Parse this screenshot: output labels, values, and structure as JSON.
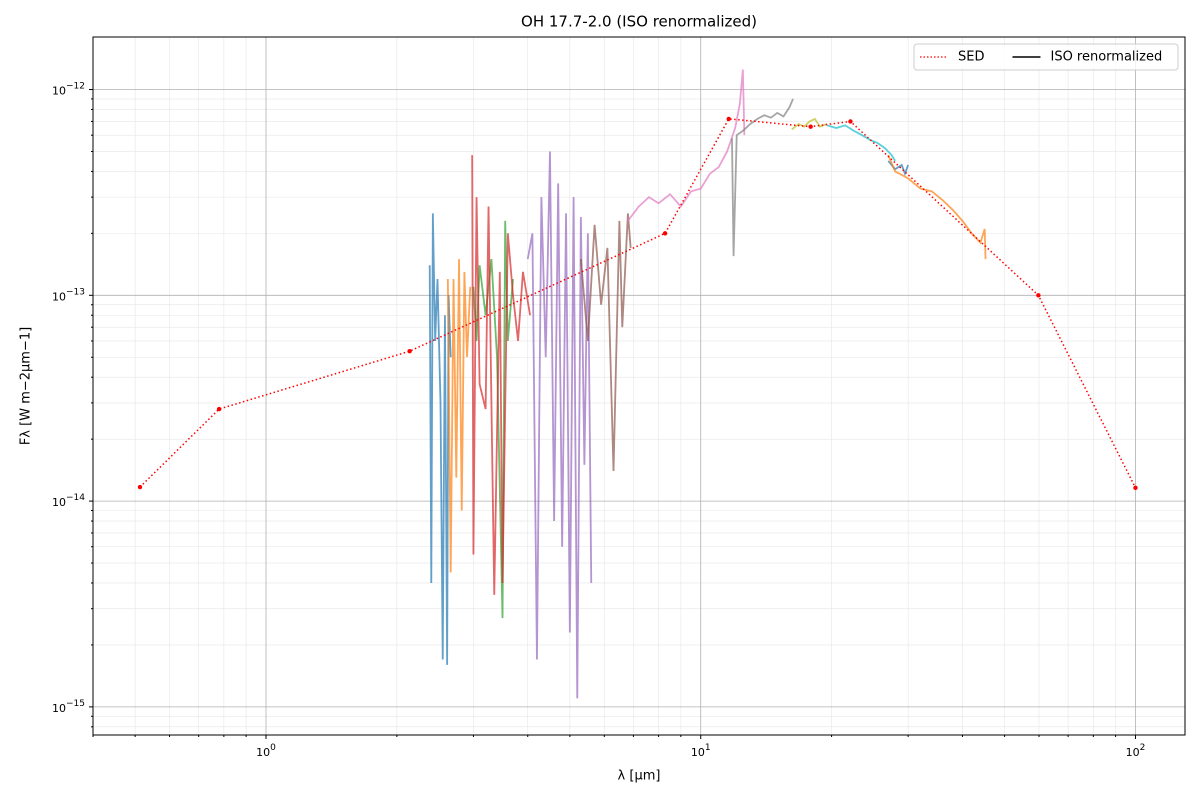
{
  "chart_data": {
    "type": "line",
    "title": "OH 17.7-2.0 (ISO renormalized)",
    "x_label": "λ [μm]",
    "y_label": "Fλ [W m−2μm−1]",
    "xscale": "log",
    "yscale": "log",
    "grid": true,
    "legend": "upper right",
    "xlim": [
      0.4,
      130
    ],
    "ylim": [
      7.3e-16,
      1.8e-12
    ],
    "xticks": [
      {
        "value": 1,
        "label": "100"
      },
      {
        "value": 10,
        "label": "101"
      },
      {
        "value": 100,
        "label": "102"
      }
    ],
    "yticks": [
      {
        "value": 1e-15,
        "label": "10−15"
      },
      {
        "value": 1e-14,
        "label": "10−14"
      },
      {
        "value": 1e-13,
        "label": "10−13"
      },
      {
        "value": 1e-12,
        "label": "10−12"
      }
    ],
    "xminorticks": [
      0.4,
      0.5,
      0.6,
      0.7,
      0.8,
      0.9,
      2,
      3,
      4,
      5,
      6,
      7,
      8,
      9,
      20,
      30,
      40,
      50,
      60,
      70,
      80,
      90
    ],
    "yminorticks": [
      8e-16,
      9e-16,
      2e-15,
      3e-15,
      4e-15,
      5e-15,
      6e-15,
      7e-15,
      8e-15,
      9e-15,
      2e-14,
      3e-14,
      4e-14,
      5e-14,
      6e-14,
      7e-14,
      8e-14,
      9e-14,
      2e-13,
      3e-13,
      4e-13,
      5e-13,
      6e-13,
      7e-13,
      8e-13,
      9e-13
    ],
    "series": [
      {
        "name": "SED",
        "color": "#ff0000",
        "style": "dotted",
        "x": [
          0.513,
          0.78,
          2.14,
          8.28,
          11.6,
          17.9,
          22.1,
          59.8,
          100
        ],
        "values": [
          1.17e-14,
          2.8e-14,
          5.35e-14,
          2e-13,
          7.2e-13,
          6.6e-13,
          7e-13,
          1e-13,
          1.16e-14
        ]
      },
      {
        "name": "ISO renormalized",
        "color": "#000000",
        "style": "solid",
        "segments": [
          {
            "color": "#1f77b4",
            "x": [
              2.38,
              2.4,
              2.42,
              2.45,
              2.48,
              2.52,
              2.55,
              2.58,
              2.61,
              2.63,
              2.66
            ],
            "values": [
              1.4e-13,
              4e-15,
              2.5e-13,
              6e-14,
              1.2e-13,
              3e-14,
              1.7e-15,
              8e-14,
              1.6e-15,
              1e-13,
              5e-14
            ]
          },
          {
            "color": "#ff7f0e",
            "x": [
              2.62,
              2.66,
              2.7,
              2.74,
              2.78,
              2.82,
              2.86,
              2.9,
              2.95
            ],
            "values": [
              1.2e-13,
              4.5e-15,
              1.2e-13,
              1.3e-14,
              1.5e-13,
              9e-15,
              1.3e-13,
              5e-14,
              1.1e-13
            ]
          },
          {
            "color": "#2ca02c",
            "x": [
              3.0,
              3.05,
              3.1,
              3.2,
              3.3,
              3.4,
              3.5,
              3.55,
              3.6,
              3.7
            ],
            "values": [
              1.1e-13,
              6e-14,
              1.4e-13,
              8e-14,
              1.5e-13,
              5e-14,
              2.7e-15,
              2.3e-13,
              6e-14,
              1.2e-13
            ]
          },
          {
            "color": "#d62728",
            "x": [
              2.98,
              3.0,
              3.05,
              3.1,
              3.2,
              3.25,
              3.35,
              3.45,
              3.5,
              3.6,
              3.7,
              3.8,
              3.9,
              4.05
            ],
            "values": [
              4.8e-13,
              5.5e-15,
              3e-13,
              3.7e-14,
              2.8e-14,
              2.7e-13,
              3.5e-15,
              1.3e-13,
              4e-15,
              2e-13,
              1e-13,
              6e-14,
              1.3e-13,
              8e-14
            ]
          },
          {
            "color": "#9467bd",
            "x": [
              4.0,
              4.1,
              4.2,
              4.3,
              4.4,
              4.5,
              4.6,
              4.7,
              4.8,
              4.9,
              5.0,
              5.1,
              5.2,
              5.3,
              5.4,
              5.5,
              5.6
            ],
            "values": [
              1.5e-13,
              2e-13,
              1.7e-15,
              3e-13,
              5e-14,
              5e-13,
              8e-15,
              3.5e-13,
              6e-15,
              2.5e-13,
              2.3e-15,
              3e-13,
              1.1e-15,
              2.4e-13,
              1.5e-14,
              2e-13,
              4e-15
            ]
          },
          {
            "color": "#8c564b",
            "x": [
              5.3,
              5.5,
              5.7,
              5.9,
              6.1,
              6.3,
              6.5,
              6.6,
              6.8,
              6.9
            ],
            "values": [
              1.5e-13,
              6e-14,
              2.2e-13,
              9e-14,
              1.7e-13,
              1.4e-14,
              2.3e-13,
              7e-14,
              2.5e-13,
              1.7e-13
            ]
          },
          {
            "color": "#e377c2",
            "x": [
              6.8,
              7.2,
              7.6,
              8.0,
              8.5,
              9.0,
              9.5,
              10,
              10.5,
              11,
              11.5,
              12,
              12.3,
              12.5,
              12.6
            ],
            "values": [
              2.3e-13,
              2.7e-13,
              3e-13,
              2.8e-13,
              3.1e-13,
              2.7e-13,
              3.2e-13,
              3.3e-13,
              3.9e-13,
              4.2e-13,
              5e-13,
              6.5e-13,
              8.5e-13,
              1.25e-12,
              6e-13
            ]
          },
          {
            "color": "#7f7f7f",
            "x": [
              11.8,
              11.9,
              12.1,
              12.5,
              13,
              13.5,
              14,
              14.5,
              15,
              15.5,
              16,
              16.3
            ],
            "values": [
              5.8e-13,
              1.55e-13,
              6e-13,
              6.3e-13,
              6.8e-13,
              7.2e-13,
              7.5e-13,
              7.3e-13,
              7.7e-13,
              7.4e-13,
              8.2e-13,
              9e-13
            ]
          },
          {
            "color": "#bcbd22",
            "x": [
              16.2,
              16.8,
              17.3,
              17.8,
              18.3,
              18.8,
              19.5
            ],
            "values": [
              6.4e-13,
              6.8e-13,
              6.6e-13,
              7e-13,
              7.2e-13,
              6.6e-13,
              6.8e-13
            ]
          },
          {
            "color": "#17becf",
            "x": [
              19.5,
              20.5,
              21.5,
              22.5,
              23.5,
              24.5,
              25.5,
              26.5,
              27.5,
              28
            ],
            "values": [
              6.7e-13,
              6.5e-13,
              6.7e-13,
              6.3e-13,
              6e-13,
              5.7e-13,
              5.5e-13,
              5.2e-13,
              4.8e-13,
              4.5e-13
            ]
          },
          {
            "color": "#1f77b4",
            "x": [
              27,
              28,
              29,
              29.5,
              30
            ],
            "values": [
              4.5e-13,
              4.1e-13,
              4.3e-13,
              3.9e-13,
              4.3e-13
            ]
          },
          {
            "color": "#ff7f0e",
            "x": [
              27,
              28,
              30,
              32,
              34,
              36,
              38,
              40,
              42,
              44,
              45,
              45.2
            ],
            "values": [
              4.8e-13,
              4e-13,
              3.7e-13,
              3.3e-13,
              3.2e-13,
              2.9e-13,
              2.6e-13,
              2.3e-13,
              2e-13,
              1.8e-13,
              2.1e-13,
              1.5e-13
            ]
          }
        ]
      }
    ]
  }
}
